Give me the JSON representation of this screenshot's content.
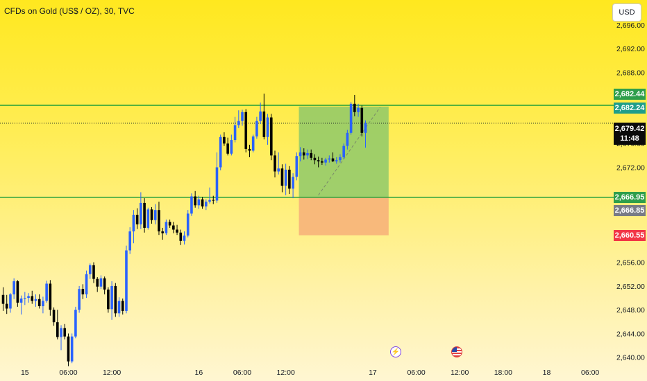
{
  "header": {
    "title": "CFDs on Gold (US$ / OZ), 30, TVC",
    "currency_button": "USD"
  },
  "colors": {
    "up_candle": "#2962FF",
    "down_candle": "#000000",
    "level_line": "#1E9E3A",
    "target_zone": "#8FC96A",
    "stop_zone": "#F7B27A",
    "tag_green": "#2E9E4B",
    "tag_teal": "#1F9E8A",
    "tag_gray": "#787B86",
    "tag_red": "#F23645",
    "tag_black": "#0B0B0B"
  },
  "price_tags": {
    "level_upper": "2,682.44",
    "target": "2,682.24",
    "current_price": "2,679.42",
    "countdown": "11:48",
    "level_lower": "2,666.95",
    "entry": "2,666.85",
    "stop": "2,660.55"
  },
  "events": {
    "bolt_icon": "lightning-icon",
    "flag_icon": "us-flag-icon"
  },
  "chart_data": {
    "type": "candlestick",
    "title": "CFDs on Gold (US$ / OZ), 30, TVC",
    "y_axis": {
      "ticks": [
        {
          "value": 2696,
          "label": "2,696.00"
        },
        {
          "value": 2692,
          "label": "2,692.00"
        },
        {
          "value": 2688,
          "label": "2,688.00"
        },
        {
          "value": 2676,
          "label": "2,676.00"
        },
        {
          "value": 2672,
          "label": "2,672.00"
        },
        {
          "value": 2656,
          "label": "2,656.00"
        },
        {
          "value": 2652,
          "label": "2,652.00"
        },
        {
          "value": 2648,
          "label": "2,648.00"
        },
        {
          "value": 2644,
          "label": "2,644.00"
        },
        {
          "value": 2640,
          "label": "2,640.00"
        }
      ],
      "range": [
        2639.5,
        2697.5
      ]
    },
    "x_axis": {
      "ticks": [
        {
          "label": "15",
          "bar": 6
        },
        {
          "label": "06:00",
          "bar": 18
        },
        {
          "label": "12:00",
          "bar": 30
        },
        {
          "label": "16",
          "bar": 54
        },
        {
          "label": "06:00",
          "bar": 66
        },
        {
          "label": "12:00",
          "bar": 78
        },
        {
          "label": "17",
          "bar": 102
        },
        {
          "label": "06:00",
          "bar": 114
        },
        {
          "label": "12:00",
          "bar": 126
        },
        {
          "label": "18:00",
          "bar": 138
        },
        {
          "label": "18",
          "bar": 150
        },
        {
          "label": "06:00",
          "bar": 162
        }
      ]
    },
    "horizontal_levels": [
      2682.44,
      2666.95
    ],
    "position": {
      "entry": 2666.85,
      "target": 2682.24,
      "stop": 2660.55,
      "start_bar": 82,
      "end_bar": 106,
      "trend_from": {
        "bar": 87,
        "price": 2667.3
      },
      "trend_to": {
        "bar": 104,
        "price": 2682.1
      }
    },
    "current_price": 2679.42,
    "candles": [
      [
        2650.5,
        2651.8,
        2647.8,
        2649.0
      ],
      [
        2649.0,
        2650.5,
        2647.3,
        2648.2
      ],
      [
        2648.2,
        2650.8,
        2647.5,
        2650.6
      ],
      [
        2650.6,
        2653.3,
        2649.8,
        2652.8
      ],
      [
        2652.8,
        2653.0,
        2648.5,
        2649.2
      ],
      [
        2649.2,
        2650.4,
        2647.2,
        2649.9
      ],
      [
        2649.9,
        2651.0,
        2648.8,
        2650.0
      ],
      [
        2650.0,
        2650.8,
        2649.2,
        2650.3
      ],
      [
        2650.3,
        2651.2,
        2649.0,
        2649.5
      ],
      [
        2649.5,
        2650.6,
        2648.5,
        2649.8
      ],
      [
        2649.8,
        2650.6,
        2648.2,
        2648.6
      ],
      [
        2648.6,
        2650.2,
        2647.4,
        2649.5
      ],
      [
        2649.5,
        2652.9,
        2649.2,
        2652.4
      ],
      [
        2652.4,
        2653.0,
        2647.0,
        2648.0
      ],
      [
        2648.0,
        2648.4,
        2645.3,
        2645.9
      ],
      [
        2645.9,
        2648.0,
        2643.0,
        2643.4
      ],
      [
        2643.4,
        2645.4,
        2641.2,
        2644.9
      ],
      [
        2644.9,
        2645.6,
        2643.0,
        2643.5
      ],
      [
        2643.5,
        2644.0,
        2638.5,
        2639.3
      ],
      [
        2639.3,
        2644.0,
        2639.0,
        2643.5
      ],
      [
        2643.5,
        2648.5,
        2643.2,
        2648.0
      ],
      [
        2648.0,
        2652.0,
        2647.5,
        2651.5
      ],
      [
        2651.5,
        2652.3,
        2649.8,
        2650.6
      ],
      [
        2650.6,
        2654.6,
        2650.0,
        2654.0
      ],
      [
        2654.0,
        2655.8,
        2653.2,
        2655.5
      ],
      [
        2655.5,
        2656.0,
        2652.5,
        2653.2
      ],
      [
        2653.2,
        2653.5,
        2651.0,
        2651.9
      ],
      [
        2651.9,
        2653.8,
        2651.5,
        2653.3
      ],
      [
        2653.3,
        2653.6,
        2650.6,
        2651.4
      ],
      [
        2651.4,
        2651.8,
        2647.5,
        2648.1
      ],
      [
        2648.1,
        2652.8,
        2646.3,
        2652.0
      ],
      [
        2652.0,
        2652.5,
        2646.8,
        2647.4
      ],
      [
        2647.4,
        2650.1,
        2646.8,
        2649.5
      ],
      [
        2649.5,
        2649.9,
        2647.2,
        2647.8
      ],
      [
        2647.8,
        2658.8,
        2647.4,
        2658.0
      ],
      [
        2658.0,
        2661.9,
        2657.4,
        2661.2
      ],
      [
        2661.2,
        2664.8,
        2659.2,
        2664.0
      ],
      [
        2664.0,
        2665.1,
        2661.6,
        2662.4
      ],
      [
        2662.4,
        2667.8,
        2661.6,
        2666.0
      ],
      [
        2666.0,
        2666.8,
        2661.0,
        2661.8
      ],
      [
        2661.8,
        2665.2,
        2661.5,
        2664.9
      ],
      [
        2664.9,
        2665.3,
        2662.5,
        2663.1
      ],
      [
        2663.1,
        2665.8,
        2662.4,
        2664.8
      ],
      [
        2664.8,
        2666.2,
        2660.6,
        2661.2
      ],
      [
        2661.2,
        2661.8,
        2659.8,
        2660.9
      ],
      [
        2660.9,
        2663.2,
        2660.6,
        2662.8
      ],
      [
        2662.8,
        2663.2,
        2661.8,
        2662.2
      ],
      [
        2662.2,
        2662.8,
        2660.9,
        2661.5
      ],
      [
        2661.5,
        2662.3,
        2660.6,
        2661.0
      ],
      [
        2661.0,
        2661.5,
        2658.9,
        2659.6
      ],
      [
        2659.6,
        2661.2,
        2659.0,
        2660.5
      ],
      [
        2660.5,
        2664.8,
        2660.2,
        2664.2
      ],
      [
        2664.2,
        2667.6,
        2663.8,
        2667.1
      ],
      [
        2667.1,
        2668.0,
        2665.2,
        2665.6
      ],
      [
        2665.6,
        2667.2,
        2665.0,
        2666.6
      ],
      [
        2666.6,
        2667.0,
        2665.0,
        2665.4
      ],
      [
        2665.4,
        2666.6,
        2664.8,
        2666.2
      ],
      [
        2666.2,
        2668.6,
        2665.9,
        2666.5
      ],
      [
        2666.5,
        2667.2,
        2665.8,
        2666.4
      ],
      [
        2666.4,
        2674.5,
        2666.0,
        2672.0
      ],
      [
        2672.0,
        2677.5,
        2671.5,
        2677.1
      ],
      [
        2677.1,
        2677.9,
        2675.6,
        2676.0
      ],
      [
        2676.0,
        2677.0,
        2674.0,
        2674.3
      ],
      [
        2674.3,
        2677.5,
        2674.0,
        2676.6
      ],
      [
        2676.6,
        2680.5,
        2676.2,
        2679.1
      ],
      [
        2679.1,
        2681.6,
        2678.6,
        2679.8
      ],
      [
        2679.8,
        2681.7,
        2679.0,
        2681.3
      ],
      [
        2681.3,
        2681.8,
        2674.5,
        2675.1
      ],
      [
        2675.1,
        2675.8,
        2673.7,
        2674.8
      ],
      [
        2674.8,
        2677.5,
        2674.5,
        2677.2
      ],
      [
        2677.2,
        2680.5,
        2676.8,
        2679.8
      ],
      [
        2679.8,
        2682.9,
        2679.3,
        2681.4
      ],
      [
        2681.4,
        2684.4,
        2676.7,
        2677.1
      ],
      [
        2677.1,
        2681.0,
        2675.8,
        2680.4
      ],
      [
        2680.4,
        2681.0,
        2673.2,
        2674.0
      ],
      [
        2674.0,
        2674.8,
        2670.3,
        2671.3
      ],
      [
        2671.3,
        2674.5,
        2670.8,
        2671.8
      ],
      [
        2671.8,
        2672.5,
        2667.8,
        2668.9
      ],
      [
        2668.9,
        2672.6,
        2667.3,
        2671.6
      ],
      [
        2671.6,
        2672.2,
        2667.5,
        2668.4
      ],
      [
        2668.4,
        2671.0,
        2666.8,
        2670.4
      ],
      [
        2670.4,
        2674.5,
        2669.8,
        2673.9
      ],
      [
        2673.9,
        2675.4,
        2673.0,
        2674.5
      ],
      [
        2674.5,
        2675.2,
        2673.3,
        2674.0
      ],
      [
        2674.0,
        2675.0,
        2673.4,
        2674.4
      ],
      [
        2674.4,
        2675.0,
        2673.2,
        2673.6
      ],
      [
        2673.6,
        2674.2,
        2672.5,
        2673.2
      ],
      [
        2673.2,
        2673.8,
        2672.0,
        2673.0
      ],
      [
        2673.0,
        2673.6,
        2672.4,
        2672.8
      ],
      [
        2672.8,
        2673.6,
        2672.3,
        2673.3
      ],
      [
        2673.3,
        2674.0,
        2672.8,
        2673.5
      ],
      [
        2673.5,
        2674.5,
        2672.9,
        2673.0
      ],
      [
        2673.0,
        2673.7,
        2672.6,
        2673.2
      ],
      [
        2673.2,
        2674.2,
        2672.8,
        2673.7
      ],
      [
        2673.7,
        2676.0,
        2673.4,
        2675.6
      ],
      [
        2675.6,
        2678.3,
        2675.0,
        2677.8
      ],
      [
        2677.8,
        2683.0,
        2677.5,
        2682.7
      ],
      [
        2682.7,
        2684.2,
        2680.6,
        2681.3
      ],
      [
        2681.3,
        2682.7,
        2680.5,
        2682.0
      ],
      [
        2682.0,
        2682.4,
        2677.2,
        2677.8
      ],
      [
        2677.8,
        2679.9,
        2675.3,
        2679.4
      ]
    ]
  }
}
